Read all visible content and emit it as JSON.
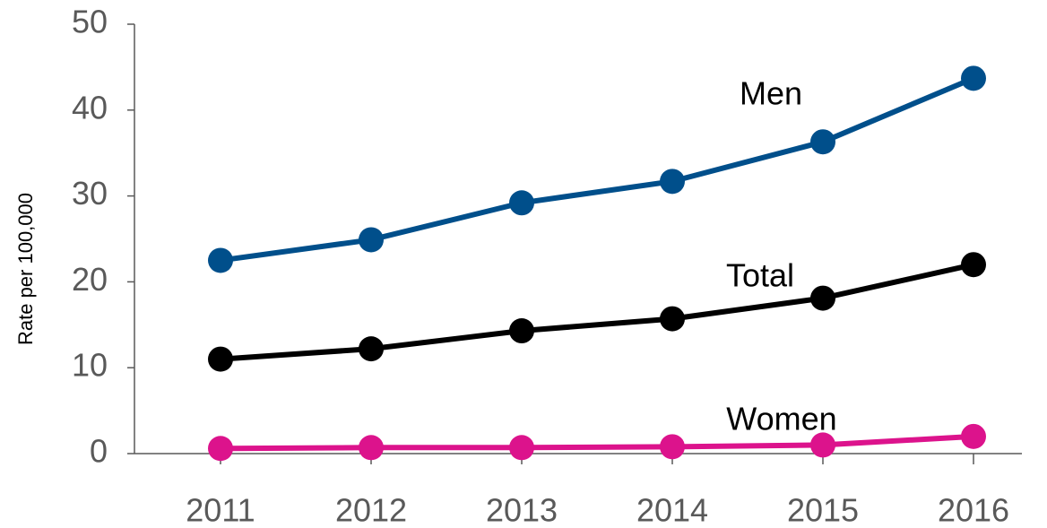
{
  "chart_data": {
    "type": "line",
    "y_label": "Rate per 100,000",
    "categories": [
      "2011",
      "2012",
      "2013",
      "2014",
      "2015",
      "2016"
    ],
    "series": [
      {
        "name": "Men",
        "color": "#004f8b",
        "values": [
          22.5,
          24.9,
          29.2,
          31.7,
          36.3,
          43.7
        ]
      },
      {
        "name": "Total",
        "color": "#000000",
        "values": [
          11.0,
          12.2,
          14.3,
          15.7,
          18.1,
          22.0
        ]
      },
      {
        "name": "Women",
        "color": "#dc138c",
        "values": [
          0.6,
          0.7,
          0.7,
          0.8,
          1.0,
          2.0
        ]
      }
    ],
    "ylim": [
      0,
      50
    ],
    "yticks": [
      0,
      10,
      20,
      30,
      40,
      50
    ],
    "grid": false
  }
}
